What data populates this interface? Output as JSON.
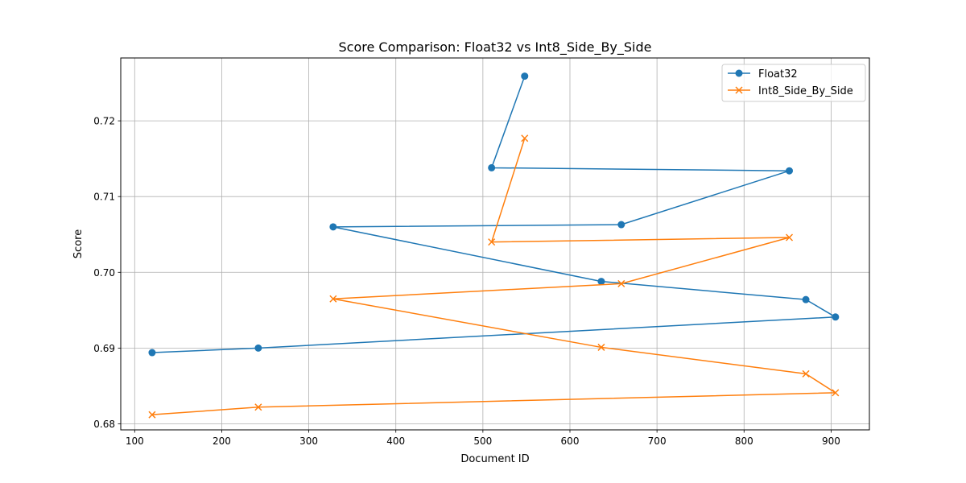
{
  "chart_data": {
    "type": "line",
    "title": "Score Comparison: Float32 vs Int8_Side_By_Side",
    "xlabel": "Document ID",
    "ylabel": "Score",
    "xlim": [
      84,
      944
    ],
    "ylim": [
      0.6792,
      0.7283
    ],
    "xticks": [
      100,
      200,
      300,
      400,
      500,
      600,
      700,
      800,
      900
    ],
    "xtick_labels": [
      "100",
      "200",
      "300",
      "400",
      "500",
      "600",
      "700",
      "800",
      "900"
    ],
    "yticks": [
      0.68,
      0.69,
      0.7,
      0.71,
      0.72
    ],
    "ytick_labels": [
      "0.68",
      "0.69",
      "0.70",
      "0.71",
      "0.72"
    ],
    "grid": true,
    "legend_position": "top-right",
    "series": [
      {
        "name": "Float32",
        "color": "#1f77b4",
        "marker": "circle",
        "x": [
          120,
          242,
          905,
          871,
          636,
          328,
          659,
          852,
          510,
          548
        ],
        "y": [
          0.6894,
          0.69,
          0.6941,
          0.6964,
          0.6988,
          0.706,
          0.7063,
          0.7134,
          0.7138,
          0.7259
        ]
      },
      {
        "name": "Int8_Side_By_Side",
        "color": "#ff7f0e",
        "marker": "x",
        "x": [
          120,
          242,
          905,
          871,
          636,
          328,
          659,
          852,
          510,
          548
        ],
        "y": [
          0.6812,
          0.6822,
          0.6841,
          0.6866,
          0.6901,
          0.6965,
          0.6985,
          0.7046,
          0.704,
          0.7177
        ]
      }
    ]
  }
}
